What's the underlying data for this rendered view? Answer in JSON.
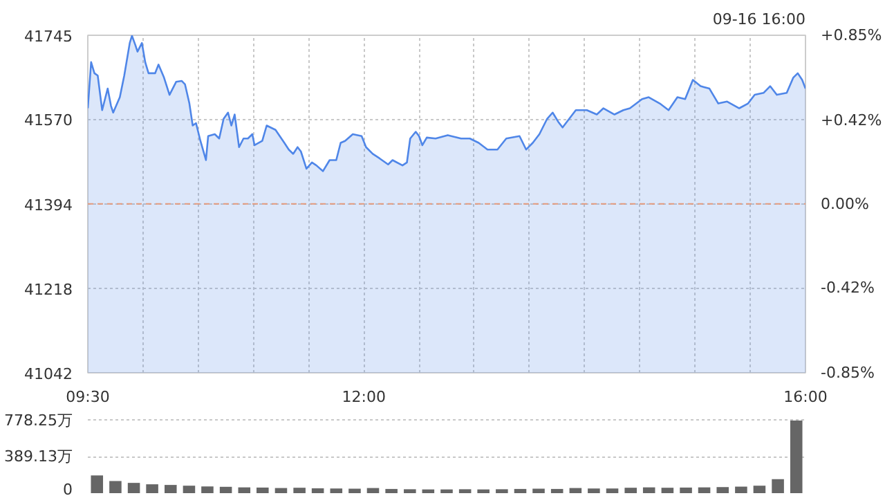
{
  "chart_data": [
    {
      "type": "area",
      "annotations": [
        "09-16 16:00"
      ],
      "x": [
        9.5,
        9.53,
        9.56,
        9.59,
        9.63,
        9.68,
        9.71,
        9.73,
        9.79,
        9.83,
        9.88,
        9.9,
        9.93,
        9.95,
        9.99,
        10.02,
        10.05,
        10.11,
        10.14,
        10.19,
        10.24,
        10.3,
        10.35,
        10.38,
        10.42,
        10.45,
        10.48,
        10.52,
        10.57,
        10.59,
        10.65,
        10.69,
        10.73,
        10.77,
        10.8,
        10.83,
        10.87,
        10.91,
        10.95,
        10.99,
        11.01,
        11.08,
        11.12,
        11.2,
        11.28,
        11.32,
        11.36,
        11.4,
        11.43,
        11.48,
        11.53,
        11.57,
        11.63,
        11.69,
        11.75,
        11.79,
        11.83,
        11.9,
        11.98,
        12.02,
        12.08,
        12.14,
        12.22,
        12.26,
        12.35,
        12.39,
        12.42,
        12.47,
        12.5,
        12.53,
        12.57,
        12.65,
        12.76,
        12.88,
        12.96,
        13.04,
        13.12,
        13.21,
        13.29,
        13.41,
        13.47,
        13.53,
        13.59,
        13.66,
        13.71,
        13.76,
        13.8,
        13.86,
        13.92,
        14.02,
        14.11,
        14.17,
        14.27,
        14.35,
        14.41,
        14.52,
        14.58,
        14.68,
        14.76,
        14.84,
        14.91,
        14.98,
        15.05,
        15.13,
        15.21,
        15.29,
        15.4,
        15.48,
        15.54,
        15.62,
        15.68,
        15.74,
        15.83,
        15.89,
        15.93,
        15.97,
        16.0
      ],
      "series": [
        {
          "color": "#4f86e8",
          "values": [
            41593,
            41689,
            41666,
            41661,
            41589,
            41634,
            41598,
            41584,
            41616,
            41661,
            41729,
            41744,
            41725,
            41711,
            41729,
            41689,
            41666,
            41666,
            41684,
            41657,
            41621,
            41648,
            41650,
            41643,
            41603,
            41557,
            41562,
            41525,
            41485,
            41535,
            41539,
            41530,
            41571,
            41584,
            41557,
            41580,
            41512,
            41530,
            41530,
            41539,
            41516,
            41525,
            41557,
            41548,
            41521,
            41507,
            41498,
            41512,
            41503,
            41467,
            41480,
            41474,
            41462,
            41485,
            41485,
            41521,
            41525,
            41539,
            41535,
            41512,
            41498,
            41489,
            41476,
            41485,
            41474,
            41480,
            41530,
            41544,
            41535,
            41516,
            41532,
            41530,
            41537,
            41530,
            41530,
            41521,
            41507,
            41507,
            41530,
            41535,
            41507,
            41521,
            41539,
            41571,
            41584,
            41565,
            41553,
            41571,
            41589,
            41589,
            41580,
            41593,
            41580,
            41589,
            41593,
            41612,
            41616,
            41603,
            41589,
            41616,
            41612,
            41652,
            41639,
            41634,
            41603,
            41607,
            41593,
            41603,
            41621,
            41625,
            41639,
            41621,
            41625,
            41657,
            41666,
            41652,
            41634
          ]
        }
      ],
      "xlim": [
        9.5,
        16
      ],
      "xticks": [
        {
          "value": 9.5,
          "label": "09:30"
        },
        {
          "value": 10,
          "label": null
        },
        {
          "value": 10.5,
          "label": null
        },
        {
          "value": 11,
          "label": null
        },
        {
          "value": 11.5,
          "label": null
        },
        {
          "value": 12,
          "label": "12:00"
        },
        {
          "value": 12.5,
          "label": null
        },
        {
          "value": 13,
          "label": null
        },
        {
          "value": 13.5,
          "label": null
        },
        {
          "value": 14,
          "label": null
        },
        {
          "value": 14.5,
          "label": null
        },
        {
          "value": 15,
          "label": null
        },
        {
          "value": 15.5,
          "label": null
        },
        {
          "value": 16,
          "label": "16:00"
        }
      ],
      "ylim": [
        41042,
        41745
      ],
      "yticks": [
        41042,
        41218,
        41394,
        41570,
        41745
      ],
      "y2lim": [
        -0.85,
        0.85
      ],
      "y2ticks": [
        {
          "value": 0.85,
          "label": "+0.85%"
        },
        {
          "value": 0.42,
          "label": "+0.42%"
        },
        {
          "value": 0,
          "label": "0.00%"
        },
        {
          "value": -0.42,
          "label": "-0.42%"
        },
        {
          "value": -0.85,
          "label": "-0.85%"
        }
      ],
      "ref_lines": [
        {
          "axis": "y",
          "value": 41394,
          "color": "#e39a7c",
          "line_style": "dashed"
        }
      ],
      "grid": true
    },
    {
      "type": "bar",
      "color": "#666666",
      "x": [
        9.583,
        9.75,
        9.917,
        10.083,
        10.25,
        10.417,
        10.583,
        10.75,
        10.917,
        11.083,
        11.25,
        11.417,
        11.583,
        11.75,
        11.917,
        12.083,
        12.25,
        12.417,
        12.583,
        12.75,
        12.917,
        13.083,
        13.25,
        13.417,
        13.583,
        13.75,
        13.917,
        14.083,
        14.25,
        14.417,
        14.583,
        14.75,
        14.917,
        15.083,
        15.25,
        15.417,
        15.583,
        15.75,
        15.917
      ],
      "values": [
        190,
        130,
        110,
        95,
        88,
        80,
        72,
        68,
        62,
        60,
        55,
        58,
        52,
        50,
        48,
        55,
        45,
        42,
        40,
        40,
        42,
        40,
        42,
        45,
        48,
        45,
        55,
        50,
        50,
        58,
        62,
        58,
        60,
        62,
        65,
        70,
        80,
        150,
        778.25
      ],
      "xlim": [
        9.5,
        16
      ],
      "ylim": [
        0,
        800
      ],
      "yticks": [
        0,
        {
          "value": 389.13,
          "label": "389.13万"
        },
        {
          "value": 778.25,
          "label": "778.25万"
        }
      ],
      "tick_labels": "y",
      "grid": "y"
    }
  ]
}
